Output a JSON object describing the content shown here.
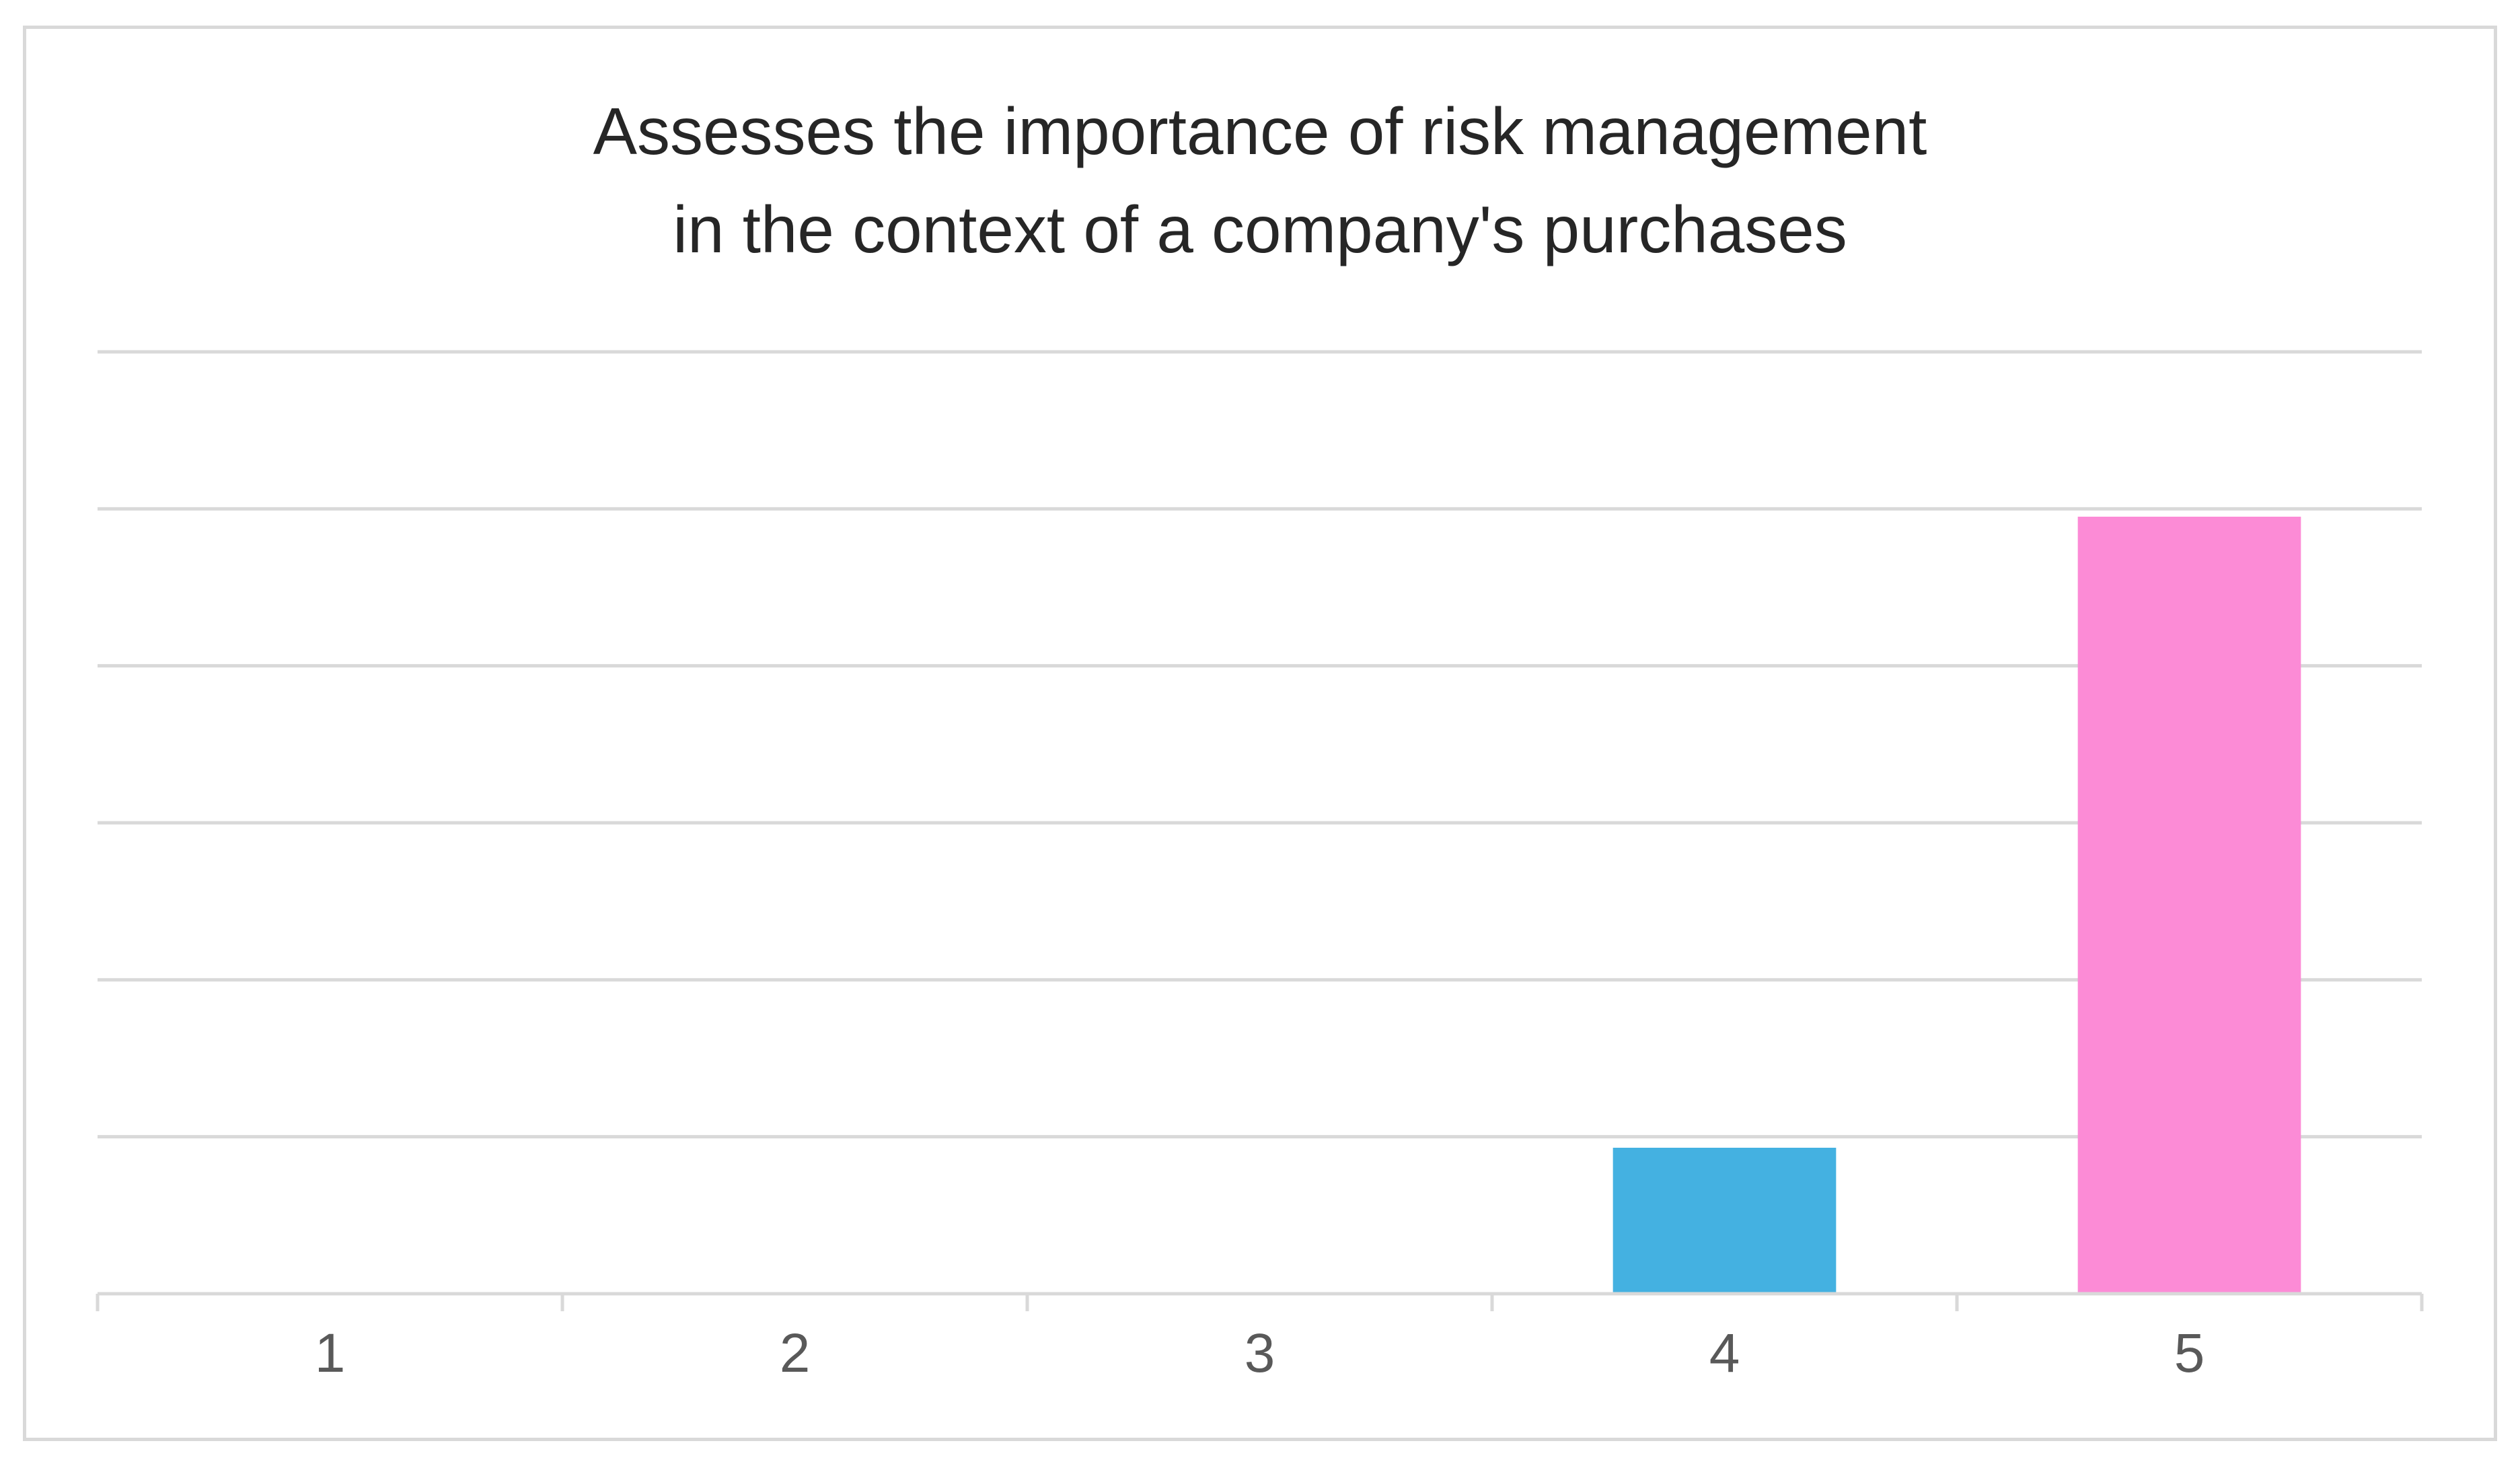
{
  "chart_data": {
    "type": "bar",
    "title_lines": [
      "Assesses the importance of risk management",
      "in the context of a company's purchases"
    ],
    "categories": [
      "1",
      "2",
      "3",
      "4",
      "5"
    ],
    "values": [
      0,
      0,
      0,
      0.93,
      4.95
    ],
    "ylim": [
      0,
      6
    ],
    "gridlines": true,
    "y_tick_labels_shown": false,
    "bar_colors": [
      "#44b1e1",
      "#44b1e1",
      "#44b1e1",
      "#44b1e1",
      "#fc8bd6"
    ]
  }
}
